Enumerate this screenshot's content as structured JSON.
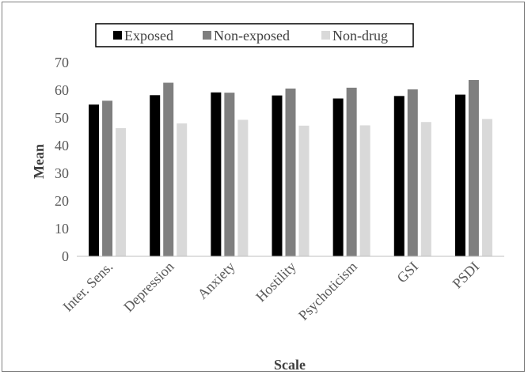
{
  "chart_data": {
    "type": "bar",
    "title": "",
    "xlabel": "Scale",
    "ylabel": "Mean",
    "ylim": [
      0,
      70
    ],
    "yticks": [
      0,
      10,
      20,
      30,
      40,
      50,
      60,
      70
    ],
    "grid": false,
    "legend_position": "top",
    "categories": [
      "Inter. Sens.",
      "Depression",
      "Anxiety",
      "Hostility",
      "Psychoticism",
      "GSI",
      "PSDI"
    ],
    "series": [
      {
        "name": "Exposed",
        "color": "#000000",
        "values": [
          54.8,
          58.2,
          59.2,
          58.1,
          57.0,
          57.9,
          58.4
        ]
      },
      {
        "name": "Non-exposed",
        "color": "#7f7f7f",
        "values": [
          56.2,
          62.7,
          59.1,
          60.6,
          60.9,
          60.3,
          63.7
        ]
      },
      {
        "name": "Non-drug",
        "color": "#d9d9d9",
        "values": [
          46.3,
          48.0,
          49.3,
          47.2,
          47.3,
          48.5,
          49.6
        ]
      }
    ]
  }
}
